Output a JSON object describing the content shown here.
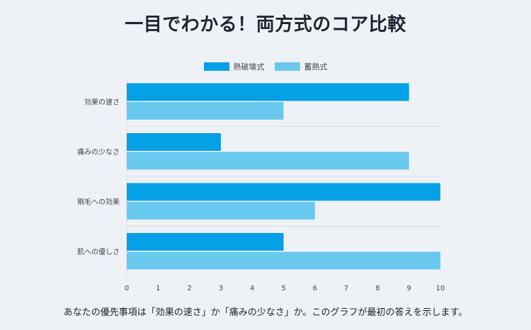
{
  "title": "一目でわかる！両方式のコア比較",
  "footer_note": "あなたの優先事項は「効果の速さ」か「痛みの少なさ」か。このグラフが最初の答えを示します。",
  "colors": {
    "series1": "#05a0e5",
    "series2": "#69c8ee",
    "background": "#eef2f7",
    "grid": "#d8dde6"
  },
  "chart_data": {
    "type": "bar",
    "orientation": "horizontal",
    "title": "一目でわかる！両方式のコア比較",
    "categories": [
      "効果の速さ",
      "痛みの少なさ",
      "剛毛への効果",
      "肌への優しさ"
    ],
    "series": [
      {
        "name": "熱破壊式",
        "values": [
          9,
          3,
          10,
          5
        ]
      },
      {
        "name": "蓄熱式",
        "values": [
          5,
          9,
          6,
          10
        ]
      }
    ],
    "xlim": [
      0,
      10
    ],
    "xticks": [
      0,
      1,
      2,
      3,
      4,
      5,
      6,
      7,
      8,
      9,
      10
    ],
    "xlabel": "",
    "ylabel": "",
    "legend_position": "top",
    "grid": true
  }
}
